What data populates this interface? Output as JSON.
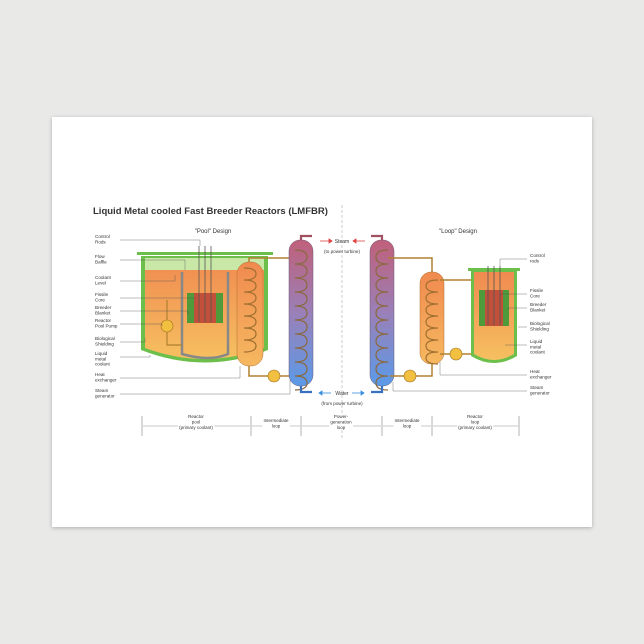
{
  "title": "Liquid Metal cooled Fast Breeder Reactors (LMFBR)",
  "pool_heading": "\"Pool\" Design",
  "loop_heading": "\"Loop\" Design",
  "left_labels": [
    [
      "Control",
      "Rods"
    ],
    [
      "Flow",
      "Baffle"
    ],
    [
      "Coolant",
      "Level"
    ],
    [
      "Fissile",
      "Core"
    ],
    [
      "Breeder",
      "Blanket"
    ],
    [
      "Reactor",
      "Pool Pump"
    ],
    [
      "Biological",
      "Shielding"
    ],
    [
      "Liquid",
      "metal",
      "coolant"
    ],
    [
      "Heat",
      "exchanger"
    ],
    [
      "Steam",
      "generator"
    ]
  ],
  "right_labels": [
    [
      "Control",
      "rods"
    ],
    [
      "Fissile",
      "Core"
    ],
    [
      "Breeder",
      "Blanket"
    ],
    [
      "Biological",
      "Shielding"
    ],
    [
      "Liquid",
      "metal",
      "coolant"
    ],
    [
      "Heat",
      "exchanger"
    ],
    [
      "Steam",
      "generator"
    ]
  ],
  "steam": {
    "label": "Steam",
    "sub": "(to power turbine)"
  },
  "water": {
    "label": "Water",
    "sub": "(from power turbine)"
  },
  "sections": [
    [
      "Reactor",
      "pool",
      "(primary coolant)"
    ],
    [
      "Intermediate",
      "loop"
    ],
    [
      "Power-",
      "generation",
      "loop"
    ],
    [
      "Intermediate",
      "loop"
    ],
    [
      "Reactor",
      "loop",
      "(primary coolant)"
    ]
  ],
  "colors": {
    "shield": "#6cbf4a",
    "shield_light": "#c9e8a8",
    "hot": "#f08a50",
    "warm": "#f6b860",
    "core": "#c0503a",
    "blanket": "#4f9a3a",
    "steam_top": "#c0607a",
    "steam_bottom": "#5b9ae8",
    "pump": "#f2c040",
    "steam_arrow": "#e04040",
    "water_arrow": "#3a8ee0"
  }
}
